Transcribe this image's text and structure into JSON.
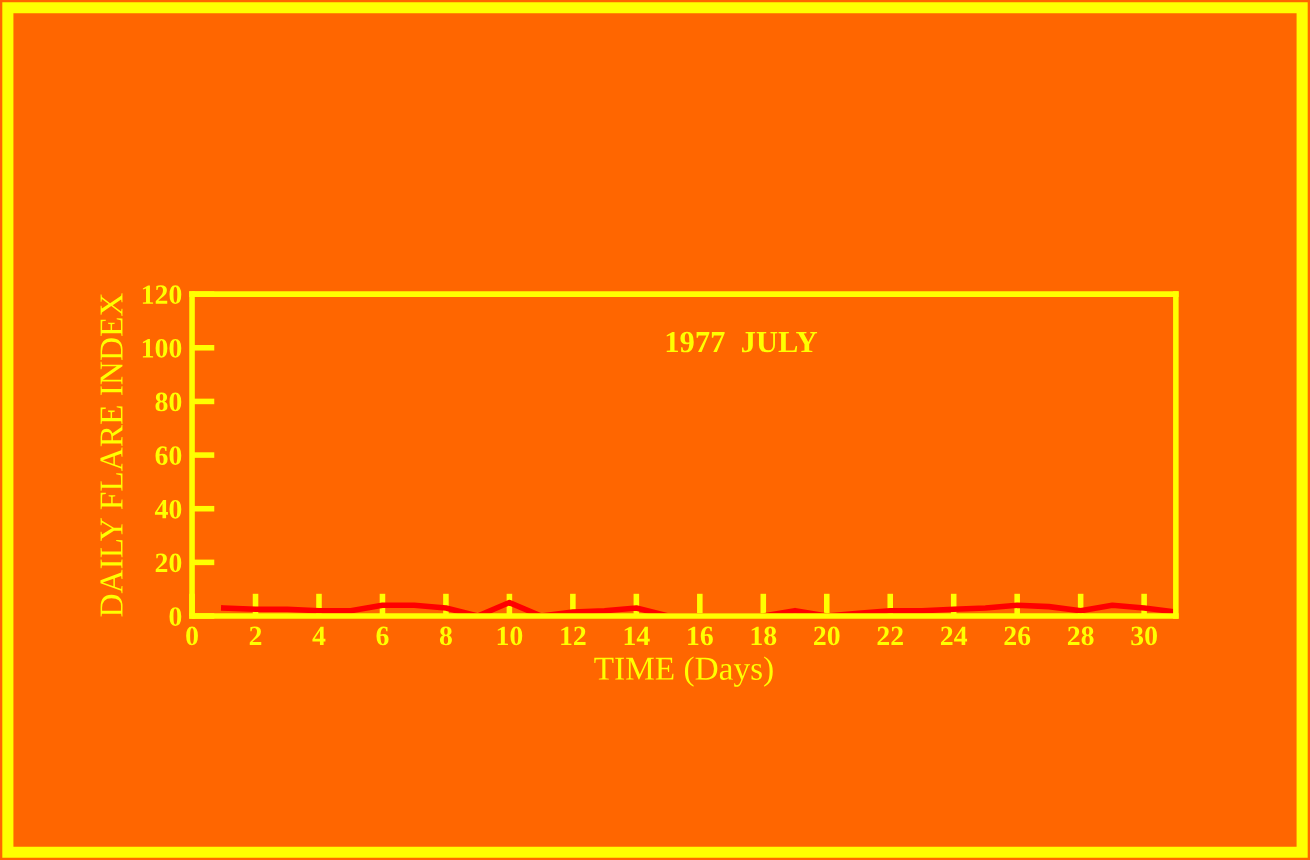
{
  "chart_data": {
    "type": "line",
    "xlabel": "TIME (Days)",
    "ylabel": "DAILY FLARE INDEX",
    "annotations": [
      "1977  JULY"
    ],
    "x": [
      1,
      2,
      3,
      4,
      5,
      6,
      7,
      8,
      9,
      10,
      11,
      12,
      13,
      14,
      15,
      16,
      17,
      18,
      19,
      20,
      21,
      22,
      23,
      24,
      25,
      26,
      27,
      28,
      29,
      30,
      31
    ],
    "series": [
      {
        "color": "#ff0000",
        "values": [
          3,
          2.5,
          2.5,
          2,
          2,
          4,
          4,
          3,
          0,
          5,
          0,
          1.5,
          2,
          3,
          0,
          0,
          0,
          0,
          2,
          0,
          1,
          2,
          2,
          2.5,
          3,
          4,
          3.5,
          2,
          4,
          3,
          1.5
        ]
      }
    ],
    "xlim": [
      0,
      31
    ],
    "ylim": [
      0,
      120
    ],
    "xticks": [
      0,
      2,
      4,
      6,
      8,
      10,
      12,
      14,
      16,
      18,
      20,
      22,
      24,
      26,
      28,
      30
    ],
    "yticks": [
      0,
      20,
      40,
      60,
      80,
      100,
      120
    ],
    "grid": false,
    "legend": false,
    "marker": "none",
    "line_style": "solid"
  }
}
